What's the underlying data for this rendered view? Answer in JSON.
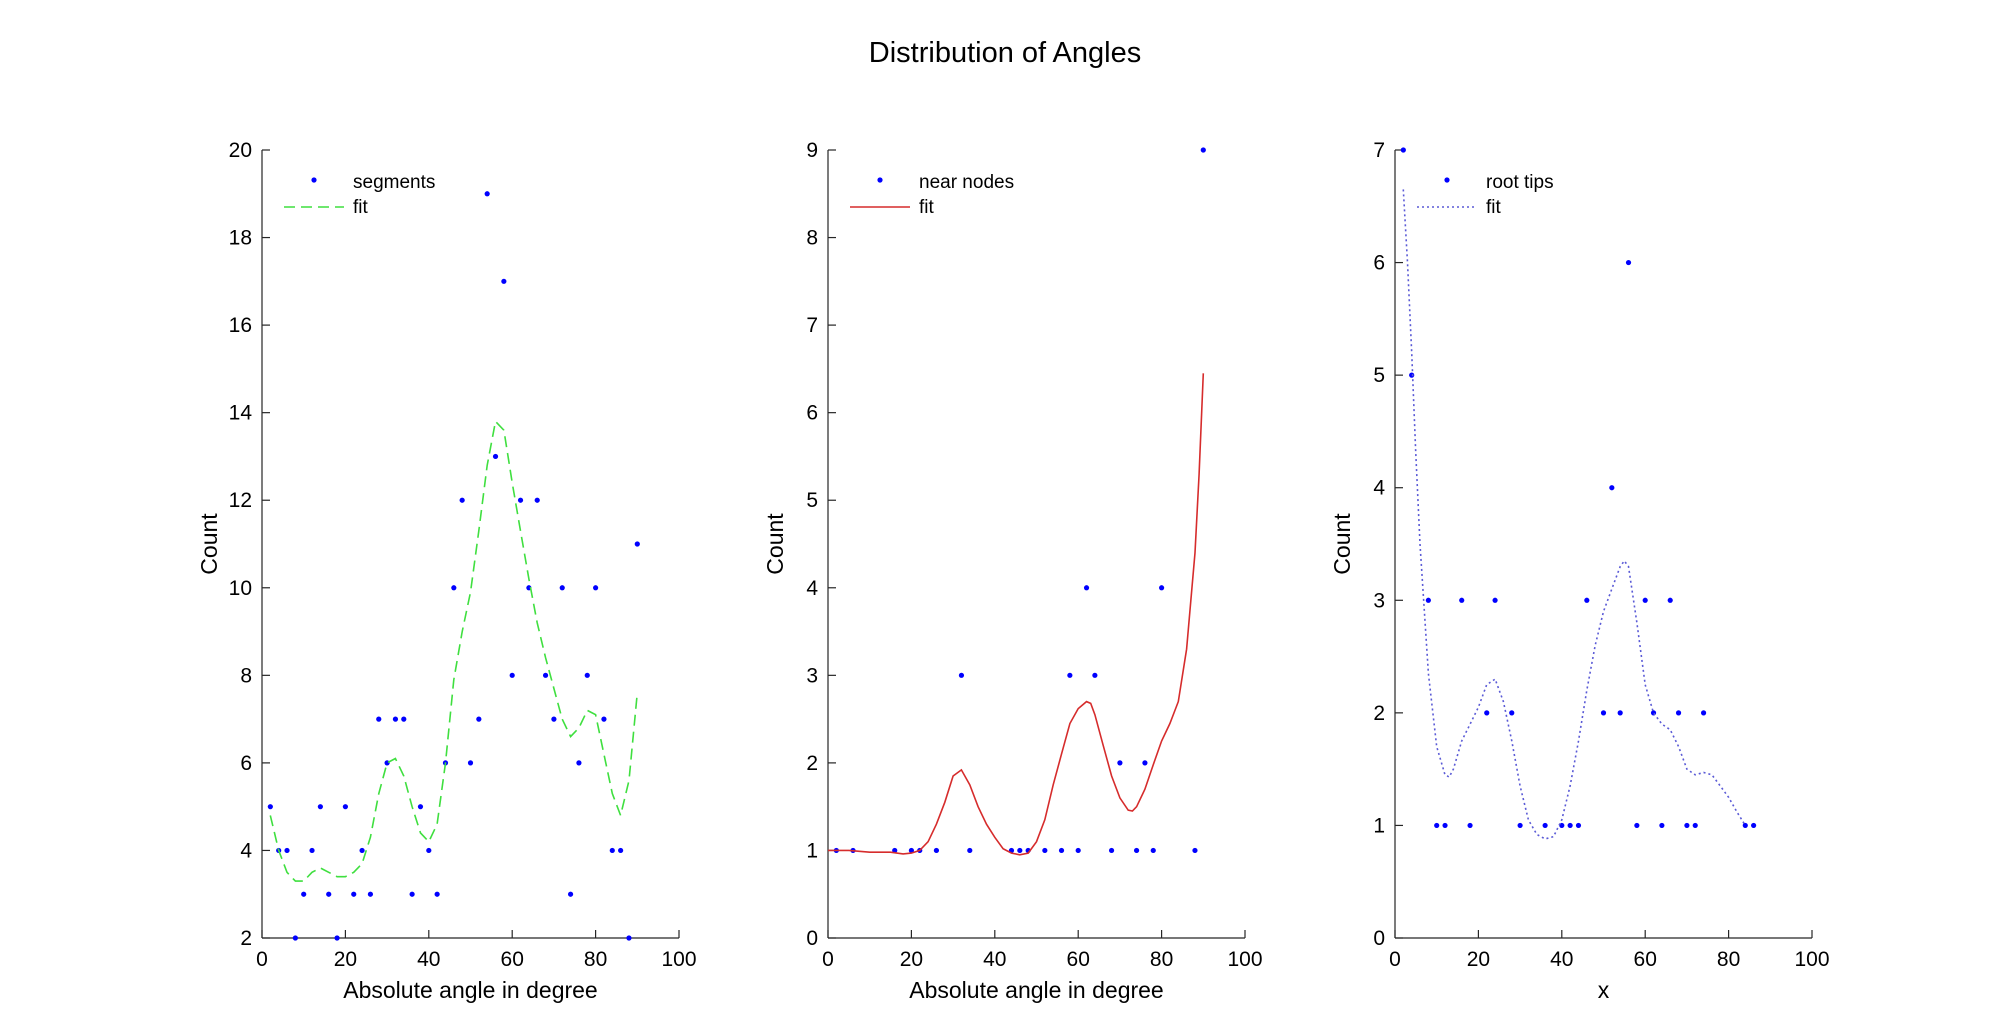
{
  "figure": {
    "title": "Distribution of Angles"
  },
  "chart_data": [
    {
      "type": "scatter",
      "xlabel": "Absolute angle in degree",
      "ylabel": "Count",
      "xlim": [
        0,
        100
      ],
      "ylim": [
        2,
        20
      ],
      "xticks": [
        0,
        20,
        40,
        60,
        80,
        100
      ],
      "yticks": [
        2,
        4,
        6,
        8,
        10,
        12,
        14,
        16,
        18,
        20
      ],
      "grid": false,
      "legend_position": "top-left",
      "series": [
        {
          "name": "segments",
          "kind": "points",
          "color": "#0000ff",
          "x": [
            2,
            4,
            6,
            8,
            10,
            12,
            14,
            16,
            18,
            20,
            22,
            24,
            26,
            28,
            30,
            32,
            34,
            36,
            38,
            40,
            42,
            44,
            46,
            48,
            50,
            52,
            54,
            56,
            58,
            60,
            62,
            64,
            66,
            68,
            70,
            72,
            74,
            76,
            78,
            80,
            82,
            84,
            86,
            88,
            90
          ],
          "y": [
            5,
            4,
            4,
            2,
            3,
            4,
            5,
            3,
            2,
            5,
            3,
            4,
            3,
            7,
            6,
            7,
            7,
            3,
            5,
            4,
            3,
            6,
            10,
            12,
            6,
            7,
            19,
            13,
            17,
            8,
            12,
            10,
            12,
            8,
            7,
            10,
            3,
            6,
            8,
            10,
            7,
            4,
            4,
            2,
            11
          ]
        },
        {
          "name": "fit",
          "kind": "line",
          "style": "dashed",
          "color": "#3fdf3f",
          "x": [
            2,
            4,
            6,
            8,
            10,
            12,
            14,
            16,
            18,
            20,
            22,
            24,
            26,
            28,
            30,
            32,
            34,
            36,
            38,
            40,
            42,
            44,
            46,
            48,
            50,
            52,
            54,
            56,
            58,
            60,
            62,
            64,
            66,
            68,
            70,
            72,
            74,
            76,
            78,
            80,
            82,
            84,
            86,
            88,
            90
          ],
          "y": [
            4.8,
            4.0,
            3.5,
            3.3,
            3.3,
            3.5,
            3.6,
            3.5,
            3.4,
            3.4,
            3.5,
            3.7,
            4.3,
            5.3,
            6.0,
            6.1,
            5.7,
            5.0,
            4.4,
            4.2,
            4.6,
            6.0,
            7.9,
            9.0,
            9.9,
            11.3,
            12.8,
            13.8,
            13.6,
            12.4,
            11.3,
            10.2,
            9.2,
            8.4,
            7.7,
            7.0,
            6.6,
            6.8,
            7.2,
            7.1,
            6.2,
            5.3,
            4.8,
            5.6,
            7.6
          ]
        }
      ]
    },
    {
      "type": "scatter",
      "xlabel": "Absolute angle in degree",
      "ylabel": "Count",
      "xlim": [
        0,
        100
      ],
      "ylim": [
        0,
        9
      ],
      "xticks": [
        0,
        20,
        40,
        60,
        80,
        100
      ],
      "yticks": [
        0,
        1,
        2,
        3,
        4,
        5,
        6,
        7,
        8,
        9
      ],
      "grid": false,
      "legend_position": "top-left",
      "series": [
        {
          "name": "near nodes",
          "kind": "points",
          "color": "#0000ff",
          "x": [
            2,
            6,
            16,
            20,
            22,
            26,
            32,
            34,
            44,
            46,
            48,
            52,
            56,
            58,
            60,
            62,
            64,
            68,
            70,
            74,
            76,
            78,
            80,
            88,
            90
          ],
          "y": [
            1,
            1,
            1,
            1,
            1,
            1,
            3,
            1,
            1,
            1,
            1,
            1,
            1,
            3,
            1,
            4,
            3,
            1,
            2,
            1,
            2,
            1,
            4,
            1,
            9
          ]
        },
        {
          "name": "fit",
          "kind": "line",
          "style": "solid",
          "color": "#d62c2c",
          "x": [
            0,
            5,
            10,
            15,
            18,
            20,
            22,
            24,
            26,
            28,
            30,
            32,
            34,
            36,
            38,
            40,
            42,
            44,
            46,
            48,
            50,
            52,
            54,
            56,
            58,
            60,
            62,
            63,
            64,
            66,
            68,
            70,
            72,
            73,
            74,
            76,
            78,
            80,
            82,
            84,
            86,
            88,
            89,
            90
          ],
          "y": [
            1.0,
            1.0,
            0.98,
            0.98,
            0.96,
            0.97,
            1.0,
            1.1,
            1.3,
            1.55,
            1.85,
            1.92,
            1.75,
            1.5,
            1.3,
            1.15,
            1.02,
            0.97,
            0.95,
            0.97,
            1.1,
            1.35,
            1.75,
            2.1,
            2.45,
            2.62,
            2.7,
            2.68,
            2.55,
            2.2,
            1.85,
            1.6,
            1.46,
            1.45,
            1.5,
            1.7,
            1.98,
            2.25,
            2.45,
            2.7,
            3.3,
            4.4,
            5.3,
            6.45
          ]
        }
      ]
    },
    {
      "type": "scatter",
      "xlabel": "x",
      "ylabel": "Count",
      "xlim": [
        0,
        100
      ],
      "ylim": [
        0,
        7
      ],
      "xticks": [
        0,
        20,
        40,
        60,
        80,
        100
      ],
      "yticks": [
        0,
        1,
        2,
        3,
        4,
        5,
        6,
        7
      ],
      "grid": false,
      "legend_position": "top-left",
      "series": [
        {
          "name": "root tips",
          "kind": "points",
          "color": "#0000ff",
          "x": [
            2,
            4,
            8,
            10,
            12,
            16,
            18,
            22,
            24,
            28,
            30,
            36,
            40,
            42,
            44,
            46,
            50,
            52,
            54,
            56,
            58,
            60,
            62,
            64,
            66,
            68,
            70,
            72,
            74,
            84,
            86
          ],
          "y": [
            7,
            5,
            3,
            1,
            1,
            3,
            1,
            2,
            3,
            2,
            1,
            1,
            1,
            1,
            1,
            3,
            2,
            4,
            2,
            6,
            1,
            3,
            2,
            1,
            3,
            2,
            1,
            1,
            2,
            1,
            1
          ]
        },
        {
          "name": "fit",
          "kind": "line",
          "style": "dotted",
          "color": "#5a5ad6",
          "x": [
            2,
            3,
            4,
            5,
            6,
            8,
            10,
            12,
            13,
            14,
            16,
            18,
            20,
            22,
            24,
            26,
            28,
            30,
            32,
            34,
            36,
            38,
            40,
            42,
            44,
            46,
            48,
            50,
            52,
            54,
            55,
            56,
            58,
            60,
            62,
            64,
            66,
            68,
            70,
            72,
            74,
            76,
            78,
            80,
            82,
            84
          ],
          "y": [
            6.65,
            6.0,
            5.2,
            4.3,
            3.5,
            2.35,
            1.7,
            1.45,
            1.43,
            1.5,
            1.75,
            1.9,
            2.05,
            2.25,
            2.3,
            2.1,
            1.75,
            1.35,
            1.05,
            0.92,
            0.88,
            0.9,
            1.05,
            1.35,
            1.75,
            2.2,
            2.6,
            2.9,
            3.1,
            3.3,
            3.35,
            3.3,
            2.8,
            2.25,
            2.0,
            1.9,
            1.85,
            1.7,
            1.5,
            1.45,
            1.47,
            1.45,
            1.35,
            1.25,
            1.12,
            1.0
          ]
        }
      ]
    }
  ]
}
